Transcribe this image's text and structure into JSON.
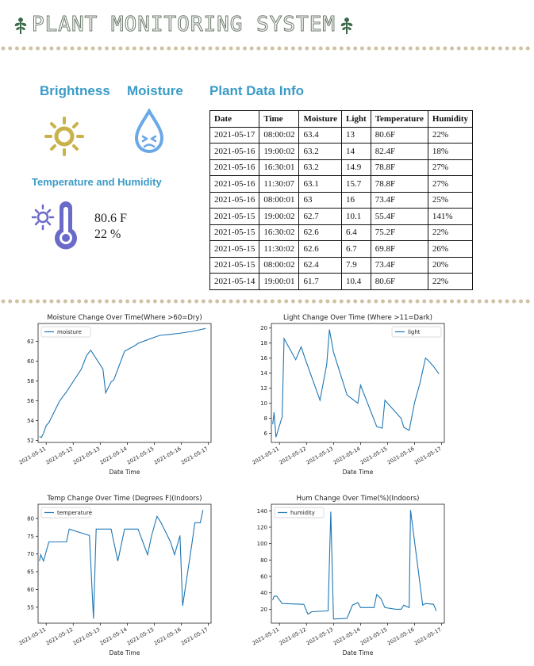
{
  "header": {
    "title": "PLANT MONITORING SYSTEM"
  },
  "sections": {
    "brightness": "Brightness",
    "moisture": "Moisture",
    "plant_data": "Plant Data Info",
    "temp_humidity": "Temperature and Humidity"
  },
  "readings": {
    "temperature": "80.6 F",
    "humidity": "22 %"
  },
  "icons": {
    "brightness": "sun-icon",
    "moisture": "water-drop-face-icon",
    "temperature": "thermometer-sun-icon",
    "header": "leaf-icon"
  },
  "colors": {
    "heading": "#3a9bc7",
    "sun": "#c9b24a",
    "drop": "#6aa8e8",
    "thermo": "#6a6ac8",
    "line": "#1f77b4",
    "dots": "#cfc3a4"
  },
  "table": {
    "headers": [
      "Date",
      "Time",
      "Moisture",
      "Light",
      "Temperature",
      "Humidity"
    ],
    "rows": [
      [
        "2021-05-17",
        "08:00:02",
        "63.4",
        "13",
        "80.6F",
        "22%"
      ],
      [
        "2021-05-16",
        "19:00:02",
        "63.2",
        "14",
        "82.4F",
        "18%"
      ],
      [
        "2021-05-16",
        "16:30:01",
        "63.2",
        "14.9",
        "78.8F",
        "27%"
      ],
      [
        "2021-05-16",
        "11:30:07",
        "63.1",
        "15.7",
        "78.8F",
        "27%"
      ],
      [
        "2021-05-16",
        "08:00:01",
        "63",
        "16",
        "73.4F",
        "25%"
      ],
      [
        "2021-05-15",
        "19:00:02",
        "62.7",
        "10.1",
        "55.4F",
        "141%"
      ],
      [
        "2021-05-15",
        "16:30:02",
        "62.6",
        "6.4",
        "75.2F",
        "22%"
      ],
      [
        "2021-05-15",
        "11:30:02",
        "62.6",
        "6.7",
        "69.8F",
        "26%"
      ],
      [
        "2021-05-15",
        "08:00:02",
        "62.4",
        "7.9",
        "73.4F",
        "20%"
      ],
      [
        "2021-05-14",
        "19:00:01",
        "61.7",
        "10.4",
        "80.6F",
        "22%"
      ]
    ]
  },
  "chart_data": [
    {
      "type": "line",
      "title": "Moisture Change Over Time(Where >60=Dry)",
      "xlabel": "Date Time",
      "ylabel": "",
      "legend": "top-left",
      "xticks": [
        "2021-05-11",
        "2021-05-12",
        "2021-05-13",
        "2021-05-14",
        "2021-05-15",
        "2021-05-16",
        "2021-05-17"
      ],
      "xlim": [
        10.7,
        17.1
      ],
      "ylim": [
        51.8,
        63.8
      ],
      "yticks": [
        52,
        54,
        56,
        58,
        60,
        62
      ],
      "series": [
        {
          "name": "moisture",
          "x": [
            10.75,
            10.82,
            10.9,
            11.0,
            11.1,
            11.5,
            11.75,
            12.3,
            12.5,
            12.65,
            13.1,
            13.2,
            13.4,
            13.5,
            13.9,
            14.3,
            14.4,
            14.7,
            15.2,
            15.6,
            15.9,
            16.4,
            16.9
          ],
          "y": [
            52.4,
            52.3,
            52.7,
            53.5,
            53.8,
            56.0,
            56.9,
            59.2,
            60.6,
            61.1,
            59.2,
            56.8,
            57.9,
            58.1,
            61.0,
            61.6,
            61.8,
            62.1,
            62.6,
            62.7,
            62.8,
            63.0,
            63.3
          ]
        }
      ]
    },
    {
      "type": "line",
      "title": "Light Change Over Time (Where >11=Dark)",
      "xlabel": "Date Time",
      "ylabel": "",
      "legend": "top-right",
      "xticks": [
        "2021-05-11",
        "2021-05-12",
        "2021-05-13",
        "2021-05-14",
        "2021-05-15",
        "2021-05-16",
        "2021-05-17"
      ],
      "xlim": [
        10.7,
        17.1
      ],
      "ylim": [
        4.8,
        20.6
      ],
      "yticks": [
        6,
        8,
        10,
        12,
        14,
        16,
        18,
        20
      ],
      "series": [
        {
          "name": "light",
          "x": [
            10.75,
            10.8,
            10.87,
            11.1,
            11.17,
            11.6,
            11.8,
            11.95,
            12.5,
            12.75,
            12.85,
            13.0,
            13.5,
            13.9,
            14.0,
            14.6,
            14.8,
            14.9,
            15.0,
            15.5,
            15.6,
            15.8,
            16.0,
            16.2,
            16.4,
            16.5,
            16.7,
            16.9
          ],
          "y": [
            7.2,
            8.8,
            5.5,
            8.2,
            18.6,
            15.8,
            17.5,
            15.9,
            10.4,
            15.2,
            19.8,
            16.8,
            11.1,
            10.0,
            12.4,
            6.9,
            6.7,
            10.4,
            10.0,
            8.0,
            6.8,
            6.4,
            10.1,
            12.7,
            16.0,
            15.7,
            14.9,
            13.9
          ]
        }
      ]
    },
    {
      "type": "line",
      "title": "Temp Change Over Time (Degrees F)(Indoors)",
      "xlabel": "Date Time",
      "ylabel": "",
      "legend": "top-left",
      "xticks": [
        "2021-05-11",
        "2021-05-12",
        "2021-05-13",
        "2021-05-14",
        "2021-05-15",
        "2021-05-16",
        "2021-05-17"
      ],
      "xlim": [
        10.7,
        17.1
      ],
      "ylim": [
        50.5,
        84
      ],
      "yticks": [
        55,
        60,
        65,
        70,
        75,
        80
      ],
      "series": [
        {
          "name": "temperature",
          "x": [
            10.75,
            10.8,
            10.9,
            11.1,
            11.75,
            11.85,
            12.6,
            12.75,
            12.85,
            13.4,
            13.65,
            13.9,
            14.4,
            14.75,
            14.9,
            15.1,
            15.25,
            15.6,
            15.75,
            15.95,
            16.05,
            16.4,
            16.5,
            16.7,
            16.8
          ],
          "y": [
            68.0,
            69.8,
            68.0,
            73.4,
            73.4,
            77.0,
            75.2,
            51.8,
            77.0,
            77.0,
            68.0,
            77.0,
            77.0,
            69.8,
            75.2,
            80.6,
            78.8,
            73.4,
            69.8,
            75.2,
            55.4,
            73.4,
            78.8,
            78.8,
            82.4
          ]
        }
      ]
    },
    {
      "type": "line",
      "title": "Hum Change Over Time(%)(Indoors)",
      "xlabel": "Date Time",
      "ylabel": "",
      "legend": "top-left",
      "xticks": [
        "2021-05-11",
        "2021-05-12",
        "2021-05-13",
        "2021-05-14",
        "2021-05-15",
        "2021-05-16",
        "2021-05-17"
      ],
      "xlim": [
        10.7,
        17.1
      ],
      "ylim": [
        3,
        148
      ],
      "yticks": [
        20,
        40,
        60,
        80,
        100,
        120,
        140
      ],
      "series": [
        {
          "name": "humidity",
          "x": [
            10.75,
            10.8,
            10.9,
            11.1,
            11.9,
            12.05,
            12.2,
            12.8,
            12.9,
            13.0,
            13.5,
            13.7,
            13.9,
            14.0,
            14.5,
            14.6,
            14.75,
            14.9,
            15.3,
            15.5,
            15.6,
            15.8,
            15.85,
            16.3,
            16.4,
            16.7,
            16.8
          ],
          "y": [
            31,
            36,
            36,
            27,
            26,
            14,
            17,
            18,
            139,
            8,
            9,
            25,
            28,
            22,
            22,
            38,
            33,
            22,
            20,
            20,
            25,
            22,
            141,
            25,
            27,
            26,
            18
          ]
        }
      ]
    }
  ]
}
